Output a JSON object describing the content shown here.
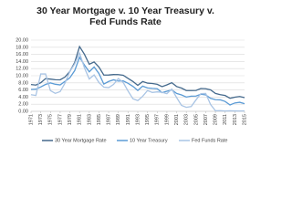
{
  "chart_data": {
    "type": "line",
    "title": "30 Year Mortgage v. 10 Year Treasury v. Fed Funds Rate",
    "x": [
      1971,
      1972,
      1973,
      1974,
      1975,
      1976,
      1977,
      1978,
      1979,
      1980,
      1981,
      1982,
      1983,
      1984,
      1985,
      1986,
      1987,
      1988,
      1989,
      1990,
      1991,
      1992,
      1993,
      1994,
      1995,
      1996,
      1997,
      1998,
      1999,
      2000,
      2001,
      2002,
      2003,
      2004,
      2005,
      2006,
      2007,
      2008,
      2009,
      2010,
      2011,
      2012,
      2013,
      2014,
      2015
    ],
    "series": [
      {
        "name": "30 Year Mortgage Rate",
        "color": "#44698c",
        "values": [
          7.54,
          7.38,
          8.04,
          9.19,
          9.05,
          8.87,
          8.85,
          9.64,
          11.2,
          13.74,
          18.2,
          16.04,
          13.24,
          13.88,
          12.43,
          10.19,
          10.21,
          10.34,
          10.32,
          10.13,
          9.25,
          8.39,
          7.31,
          8.38,
          7.93,
          7.81,
          7.6,
          6.94,
          7.44,
          8.05,
          6.97,
          6.54,
          5.83,
          5.84,
          5.87,
          6.41,
          6.34,
          6.03,
          5.04,
          4.69,
          4.45,
          3.66,
          3.98,
          4.17,
          3.85
        ]
      },
      {
        "name": "10 Year Treasury",
        "color": "#5b9bd5",
        "values": [
          6.16,
          6.21,
          6.85,
          7.56,
          7.99,
          7.61,
          7.42,
          8.41,
          9.43,
          11.43,
          15.2,
          13.01,
          11.1,
          12.46,
          10.62,
          7.67,
          8.39,
          8.85,
          8.49,
          8.55,
          7.86,
          7.01,
          5.87,
          7.09,
          6.57,
          6.44,
          6.35,
          5.26,
          5.65,
          6.03,
          5.02,
          4.61,
          4.01,
          4.27,
          4.29,
          4.8,
          4.63,
          3.66,
          3.26,
          3.22,
          2.78,
          1.8,
          2.35,
          2.54,
          2.14
        ]
      },
      {
        "name": "Fed Funds Rate",
        "color": "#a9c4e4",
        "values": [
          4.67,
          4.44,
          10.5,
          10.51,
          5.82,
          5.04,
          5.54,
          7.94,
          11.2,
          13.35,
          16.4,
          12.24,
          9.09,
          10.23,
          8.1,
          6.8,
          6.66,
          7.57,
          9.21,
          8.1,
          5.69,
          3.52,
          3.02,
          4.21,
          5.83,
          5.3,
          5.46,
          5.35,
          4.97,
          6.24,
          3.88,
          1.67,
          1.13,
          1.35,
          3.22,
          4.97,
          5.02,
          1.92,
          0.16,
          0.18,
          0.1,
          0.14,
          0.11,
          0.09,
          0.13
        ]
      }
    ],
    "xlim": [
      1971,
      2015
    ],
    "xticks": [
      1971,
      1973,
      1975,
      1977,
      1979,
      1981,
      1983,
      1985,
      1987,
      1989,
      1991,
      1993,
      1995,
      1997,
      1999,
      2001,
      2003,
      2005,
      2007,
      2009,
      2011,
      2013,
      2015
    ],
    "ylim": [
      0,
      20
    ],
    "yticks": [
      {
        "value": 0,
        "label": "0.00"
      },
      {
        "value": 2,
        "label": "2.00"
      },
      {
        "value": 4,
        "label": "4.00"
      },
      {
        "value": 6,
        "label": "6.00"
      },
      {
        "value": 8,
        "label": "8.00"
      },
      {
        "value": 10,
        "label": "10.00"
      },
      {
        "value": 12,
        "label": "12.00"
      },
      {
        "value": 14,
        "label": "14.00"
      },
      {
        "value": 16,
        "label": "16.00"
      },
      {
        "value": 18,
        "label": "18.00"
      },
      {
        "value": 20,
        "label": "20.00"
      }
    ],
    "grid": true,
    "legend": "bottom"
  }
}
